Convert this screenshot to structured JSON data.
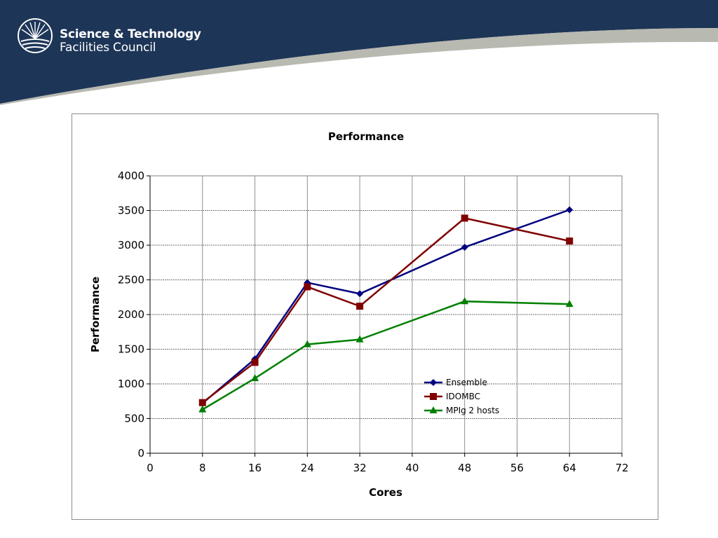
{
  "header": {
    "org_line1": "Science & Technology",
    "org_line2": "Facilities Council",
    "logo_icon": "sunburst-logo-icon",
    "colors": {
      "navy": "#1d3557",
      "grey_swoosh": "#b8b9b0"
    }
  },
  "chart_data": {
    "type": "line",
    "title": "Performance",
    "xlabel": "Cores",
    "ylabel": "Performance",
    "xlim": [
      0,
      72
    ],
    "ylim": [
      0,
      4000
    ],
    "xticks": [
      0,
      8,
      16,
      24,
      32,
      40,
      48,
      56,
      64,
      72
    ],
    "yticks": [
      0,
      500,
      1000,
      1500,
      2000,
      2500,
      3000,
      3500,
      4000
    ],
    "grid": true,
    "legend_position": "lower-right",
    "series": [
      {
        "name": "Ensemble",
        "color": "#000080",
        "marker": "diamond",
        "x": [
          8,
          16,
          24,
          32,
          48,
          64
        ],
        "y": [
          720,
          1360,
          2460,
          2300,
          2970,
          3510
        ]
      },
      {
        "name": "IDOMBC",
        "color": "#800000",
        "marker": "square",
        "x": [
          8,
          16,
          24,
          32,
          48,
          64
        ],
        "y": [
          730,
          1310,
          2400,
          2120,
          3390,
          3060
        ]
      },
      {
        "name": "MPIg 2 hosts",
        "color": "#008000",
        "marker": "triangle",
        "x": [
          8,
          16,
          24,
          32,
          48,
          64
        ],
        "y": [
          630,
          1080,
          1570,
          1640,
          2190,
          2150
        ]
      }
    ]
  }
}
